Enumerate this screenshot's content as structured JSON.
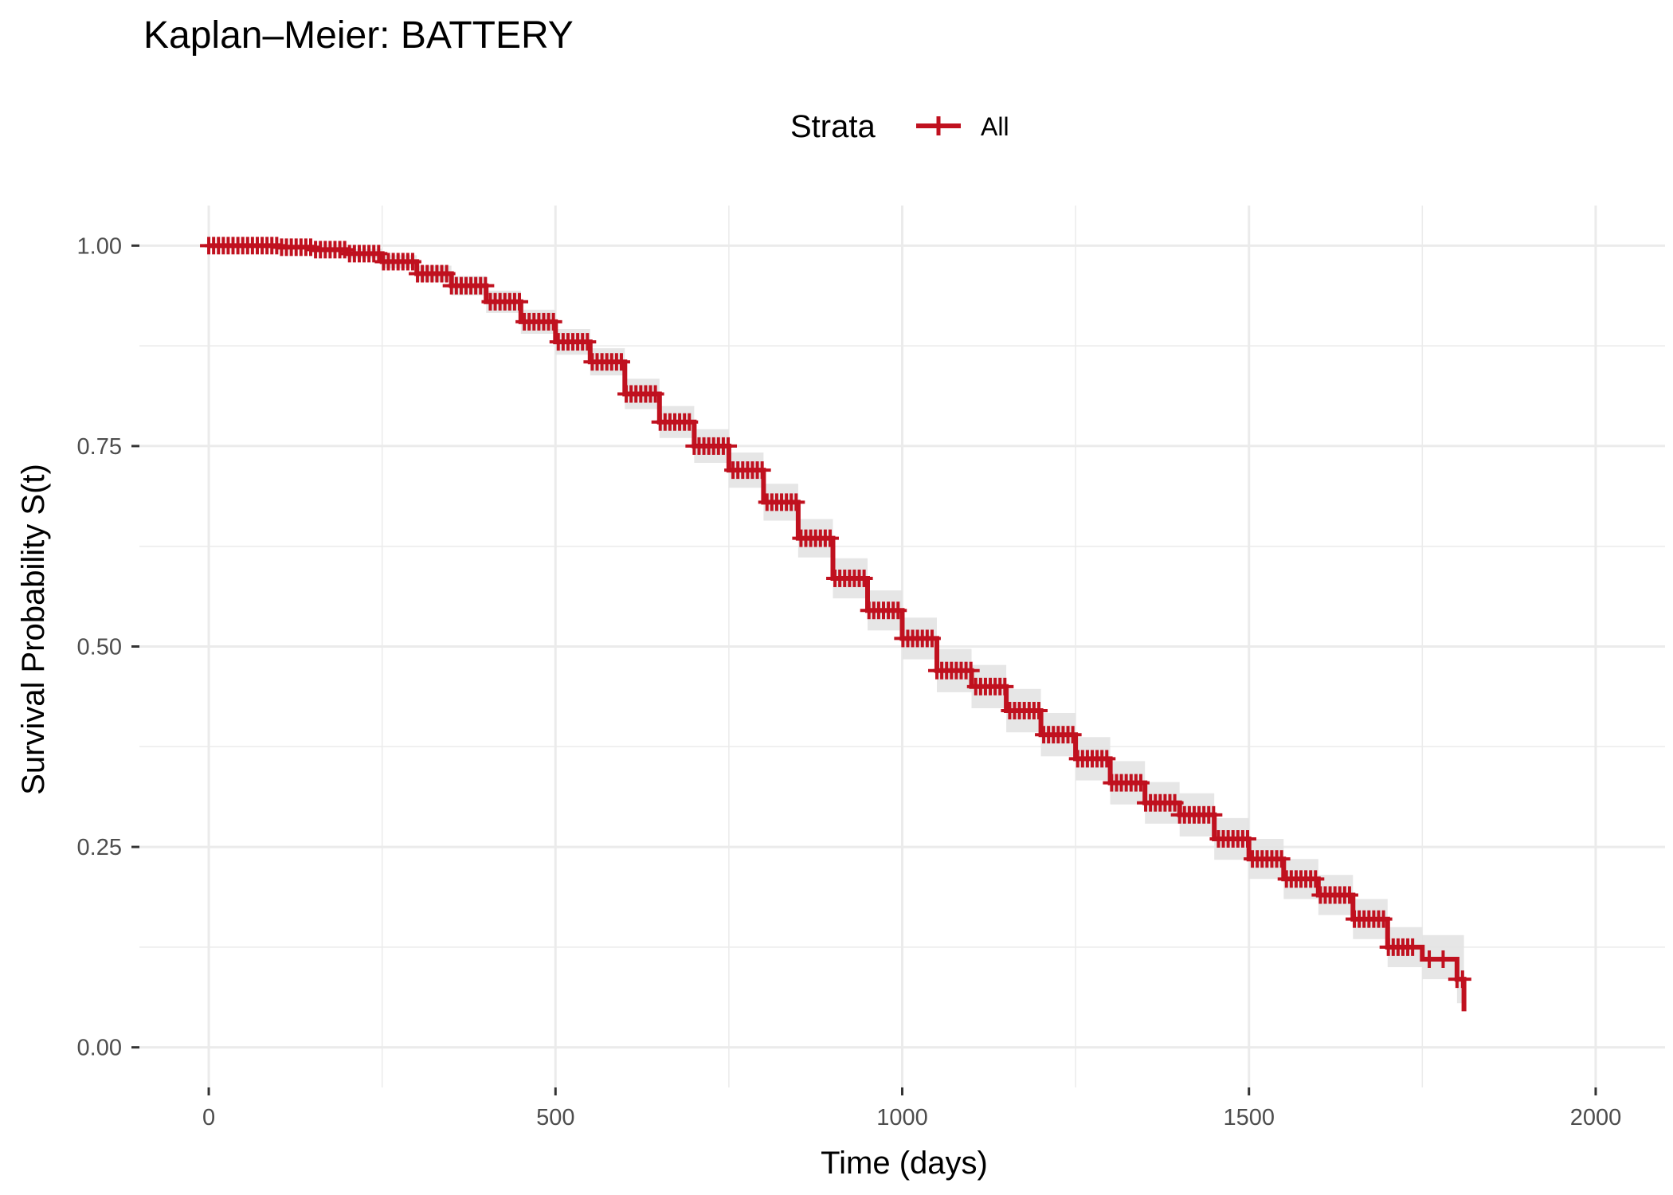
{
  "chart_data": {
    "type": "line",
    "title": "Kaplan–Meier: BATTERY",
    "xlabel": "Time (days)",
    "ylabel": "Survival Probability S(t)",
    "xlim": [
      -100,
      2100
    ],
    "ylim": [
      -0.05,
      1.05
    ],
    "x_ticks": [
      0,
      500,
      1000,
      1500,
      2000
    ],
    "x_tick_labels": [
      "0",
      "500",
      "1000",
      "1500",
      "2000"
    ],
    "y_ticks": [
      0,
      0.25,
      0.5,
      0.75,
      1.0
    ],
    "y_tick_labels": [
      "0.00",
      "0.25",
      "0.50",
      "0.75",
      "1.00"
    ],
    "grid": true,
    "legend": {
      "title": "Strata",
      "position": "top",
      "entries": [
        "All"
      ]
    },
    "colors": {
      "series": "#C0111F",
      "ribbon": "#E3E3E3",
      "grid": "#EBEBEB",
      "tick_text": "#4D4D4D"
    },
    "series": [
      {
        "name": "All",
        "x": [
          0,
          100,
          150,
          200,
          250,
          300,
          350,
          400,
          450,
          500,
          550,
          600,
          650,
          700,
          750,
          800,
          850,
          900,
          950,
          1000,
          1050,
          1100,
          1150,
          1200,
          1250,
          1300,
          1350,
          1400,
          1450,
          1500,
          1550,
          1600,
          1650,
          1700,
          1750,
          1800,
          1810
        ],
        "y": [
          1.0,
          0.998,
          0.995,
          0.99,
          0.98,
          0.965,
          0.95,
          0.93,
          0.905,
          0.88,
          0.855,
          0.815,
          0.78,
          0.75,
          0.72,
          0.68,
          0.635,
          0.585,
          0.545,
          0.51,
          0.47,
          0.45,
          0.42,
          0.39,
          0.36,
          0.33,
          0.305,
          0.29,
          0.26,
          0.235,
          0.21,
          0.19,
          0.16,
          0.125,
          0.11,
          0.085,
          0.045
        ],
        "ci_lower": [
          1.0,
          0.996,
          0.991,
          0.984,
          0.972,
          0.955,
          0.938,
          0.916,
          0.89,
          0.864,
          0.838,
          0.796,
          0.76,
          0.729,
          0.698,
          0.657,
          0.611,
          0.56,
          0.52,
          0.484,
          0.443,
          0.423,
          0.393,
          0.363,
          0.333,
          0.303,
          0.279,
          0.263,
          0.234,
          0.21,
          0.185,
          0.165,
          0.135,
          0.1,
          0.085,
          0.055,
          0.015
        ],
        "ci_upper": [
          1.0,
          1.0,
          0.999,
          0.996,
          0.988,
          0.975,
          0.962,
          0.944,
          0.92,
          0.896,
          0.872,
          0.834,
          0.8,
          0.771,
          0.742,
          0.703,
          0.659,
          0.61,
          0.57,
          0.536,
          0.497,
          0.477,
          0.447,
          0.417,
          0.387,
          0.357,
          0.331,
          0.317,
          0.286,
          0.26,
          0.235,
          0.215,
          0.185,
          0.15,
          0.14,
          0.14,
          0.19
        ]
      }
    ]
  }
}
